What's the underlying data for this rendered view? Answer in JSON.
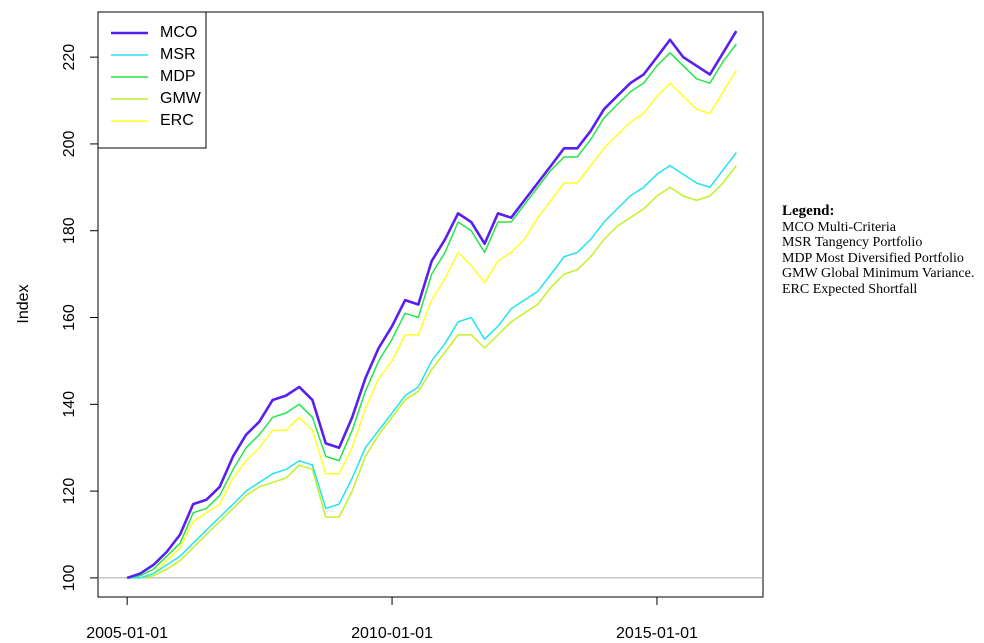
{
  "chart_data": {
    "type": "line",
    "ylabel": "Index",
    "x": [
      "2005-01-01",
      "2005-04-01",
      "2005-07-01",
      "2005-10-01",
      "2006-01-01",
      "2006-04-01",
      "2006-07-01",
      "2006-10-01",
      "2007-01-01",
      "2007-04-01",
      "2007-07-01",
      "2007-10-01",
      "2008-01-01",
      "2008-04-01",
      "2008-07-01",
      "2008-10-01",
      "2009-01-01",
      "2009-04-01",
      "2009-07-01",
      "2009-10-01",
      "2010-01-01",
      "2010-04-01",
      "2010-07-01",
      "2010-10-01",
      "2011-01-01",
      "2011-04-01",
      "2011-07-01",
      "2011-10-01",
      "2012-01-01",
      "2012-04-01",
      "2012-07-01",
      "2012-10-01",
      "2013-01-01",
      "2013-04-01",
      "2013-07-01",
      "2013-10-01",
      "2014-01-01",
      "2014-04-01",
      "2014-07-01",
      "2014-10-01",
      "2015-01-01",
      "2015-04-01",
      "2015-07-01",
      "2015-10-01",
      "2016-01-01",
      "2016-04-01",
      "2016-07-01"
    ],
    "series": [
      {
        "name": "MCO",
        "color": "#5a1ff0",
        "values": [
          100,
          101,
          103,
          106,
          110,
          117,
          118,
          121,
          128,
          133,
          136,
          141,
          142,
          144,
          141,
          131,
          130,
          137,
          146,
          153,
          158,
          164,
          163,
          173,
          178,
          184,
          182,
          177,
          184,
          183,
          187,
          191,
          195,
          199,
          199,
          203,
          208,
          211,
          214,
          216,
          220,
          224,
          220,
          218,
          216,
          221,
          226
        ]
      },
      {
        "name": "MSR",
        "color": "#22e4f2",
        "values": [
          100,
          100,
          101,
          103,
          105,
          108,
          111,
          114,
          117,
          120,
          122,
          124,
          125,
          127,
          126,
          116,
          117,
          123,
          130,
          134,
          138,
          142,
          144,
          150,
          154,
          159,
          160,
          155,
          158,
          162,
          164,
          166,
          170,
          174,
          175,
          178,
          182,
          185,
          188,
          190,
          193,
          195,
          193,
          191,
          190,
          194,
          198
        ]
      },
      {
        "name": "MDP",
        "color": "#25e64a",
        "values": [
          100,
          100.5,
          102,
          105,
          108,
          115,
          116,
          119,
          125,
          130,
          133,
          137,
          138,
          140,
          137,
          128,
          127,
          134,
          143,
          150,
          155,
          161,
          160,
          170,
          175,
          182,
          180,
          175,
          182,
          182,
          186,
          190,
          194,
          197,
          197,
          201,
          206,
          209,
          212,
          214,
          218,
          221,
          218,
          215,
          214,
          219,
          223
        ]
      },
      {
        "name": "GMW",
        "color": "#c2f226",
        "values": [
          100,
          100,
          100.5,
          102,
          104,
          107,
          110,
          113,
          116,
          119,
          121,
          122,
          123,
          126,
          125,
          114,
          114,
          120,
          128,
          133,
          137,
          141,
          143,
          148,
          152,
          156,
          156,
          153,
          156,
          159,
          161,
          163,
          167,
          170,
          171,
          174,
          178,
          181,
          183,
          185,
          188,
          190,
          188,
          187,
          188,
          191,
          195
        ]
      },
      {
        "name": "ERC",
        "color": "#ffff26",
        "values": [
          100,
          100,
          101,
          104,
          107,
          113,
          115,
          117,
          123,
          127,
          130,
          134,
          134,
          137,
          134,
          124,
          124,
          130,
          139,
          146,
          150,
          156,
          156,
          164,
          169,
          175,
          172,
          168,
          173,
          175,
          178,
          183,
          187,
          191,
          191,
          195,
          199,
          202,
          205,
          207,
          211,
          214,
          211,
          208,
          207,
          212,
          217
        ]
      }
    ],
    "xlim": [
      "2004-06-14",
      "2017-01-01"
    ],
    "xticks": [
      "2005-01-01",
      "2010-01-01",
      "2015-01-01"
    ],
    "ylim": [
      95.6,
      230.4
    ],
    "yticks": [
      100,
      120,
      140,
      160,
      180,
      200,
      220
    ],
    "hline": 100,
    "legend": "top-left"
  },
  "side_legend": {
    "title": "Legend:",
    "items": [
      "MCO Multi-Criteria",
      "MSR Tangency Portfolio",
      "MDP Most Diversified Portfolio",
      "GMW Global Minimum Variance.",
      "ERC Expected Shortfall"
    ]
  }
}
